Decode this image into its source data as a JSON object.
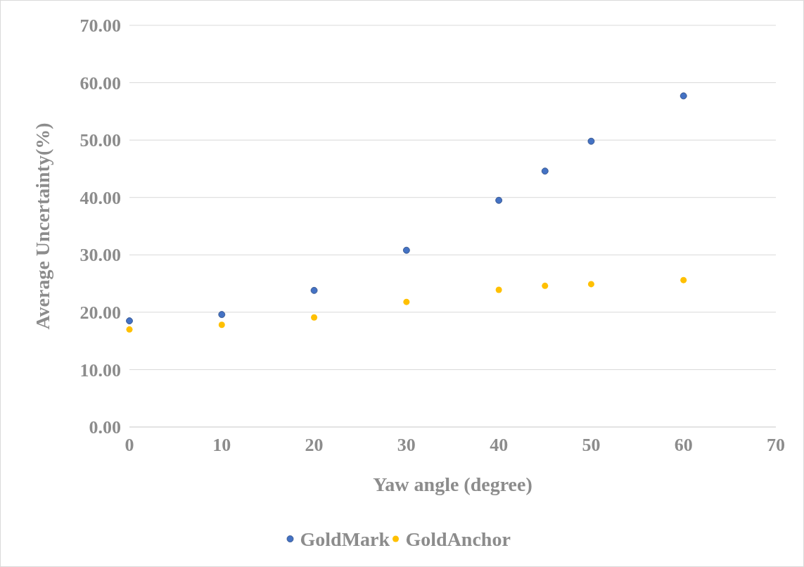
{
  "chart_data": {
    "type": "scatter",
    "xlabel": "Yaw angle (degree)",
    "ylabel": "Average Uncertainty(%)",
    "x": [
      0,
      10,
      20,
      30,
      40,
      45,
      50,
      60
    ],
    "series": [
      {
        "name": "GoldMark",
        "color": "#4472c4",
        "values": [
          18.5,
          19.6,
          23.8,
          30.8,
          39.5,
          44.6,
          49.8,
          57.7
        ]
      },
      {
        "name": "GoldAnchor",
        "color": "#ffc000",
        "values": [
          17.0,
          17.8,
          19.1,
          21.8,
          23.9,
          24.6,
          24.9,
          25.6
        ]
      }
    ],
    "xlim": [
      0,
      70
    ],
    "xticks": [
      0,
      10,
      20,
      30,
      40,
      50,
      60,
      70
    ],
    "ylim": [
      0,
      70
    ],
    "yticks": [
      {
        "value": 0,
        "label": "0.00"
      },
      {
        "value": 10,
        "label": "10.00"
      },
      {
        "value": 20,
        "label": "20.00"
      },
      {
        "value": 30,
        "label": "30.00"
      },
      {
        "value": 40,
        "label": "40.00"
      },
      {
        "value": 50,
        "label": "50.00"
      },
      {
        "value": 60,
        "label": "60.00"
      },
      {
        "value": 70,
        "label": "70.00"
      }
    ],
    "grid": "y",
    "legend": "bottom",
    "marker": "circle"
  }
}
